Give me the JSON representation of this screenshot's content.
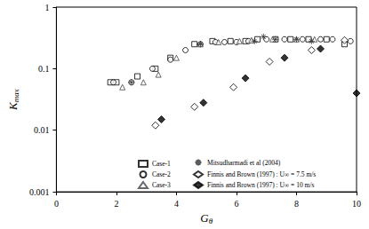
{
  "chart_data": {
    "type": "scatter",
    "x_label": "Gθ",
    "y_label": "Kmax",
    "xlim": [
      0,
      10
    ],
    "xticks": [
      0,
      2,
      4,
      6,
      8,
      10
    ],
    "ylim": [
      0.001,
      1
    ],
    "yticks": [
      0.001,
      0.01,
      0.1,
      1
    ],
    "log": "y",
    "grid": false,
    "legend": "lower center",
    "series": [
      {
        "name": "Case-1",
        "color": "#000000",
        "marker": "square-open",
        "x": [
          1.8,
          2.0,
          2.7,
          3.3,
          3.8,
          4.6,
          5.2,
          5.8,
          6.3,
          6.7,
          7.3,
          7.8,
          8.4,
          9.0,
          9.6
        ],
        "values": [
          0.06,
          0.06,
          0.075,
          0.1,
          0.15,
          0.25,
          0.28,
          0.28,
          0.28,
          0.3,
          0.3,
          0.3,
          0.3,
          0.3,
          0.25
        ]
      },
      {
        "name": "Case-2",
        "color": "#000000",
        "marker": "circle-open",
        "x": [
          1.9,
          2.5,
          3.2,
          3.8,
          4.3,
          4.8,
          5.3,
          5.6,
          6.0,
          6.4,
          7.0,
          7.6,
          8.2,
          8.8,
          9.2,
          9.8
        ],
        "values": [
          0.06,
          0.06,
          0.1,
          0.14,
          0.2,
          0.25,
          0.27,
          0.27,
          0.27,
          0.28,
          0.3,
          0.3,
          0.3,
          0.3,
          0.3,
          0.28
        ]
      },
      {
        "name": "Case-3",
        "color": "#444444",
        "marker": "triangle-open",
        "x": [
          2.2,
          2.9,
          3.4,
          4.0,
          4.8,
          5.4,
          6.1,
          6.5,
          7.2,
          8.0,
          8.6
        ],
        "values": [
          0.05,
          0.06,
          0.08,
          0.15,
          0.25,
          0.27,
          0.28,
          0.29,
          0.3,
          0.3,
          0.3
        ]
      },
      {
        "name": "Mitsudharmadi et al (2004)",
        "color": "#333333",
        "marker": "asterisk",
        "x": [
          2.5,
          4.8,
          6.6,
          6.9,
          7.3,
          8.0,
          8.5
        ],
        "values": [
          0.06,
          0.25,
          0.28,
          0.33,
          0.3,
          0.3,
          0.28
        ]
      },
      {
        "name": "Finnis and Brown (1997) : U∞ = 7.5 m/s",
        "color": "#000000",
        "marker": "diamond-open",
        "x": [
          3.3,
          4.6,
          5.9,
          7.1,
          8.5,
          9.6
        ],
        "values": [
          0.012,
          0.024,
          0.05,
          0.13,
          0.2,
          0.29
        ]
      },
      {
        "name": "Finnis and Brown (1997) : U∞ = 10 m/s",
        "color": "#000000",
        "marker": "diamond",
        "x": [
          3.5,
          4.9,
          6.3,
          7.6,
          8.8,
          10.0
        ],
        "values": [
          0.015,
          0.028,
          0.07,
          0.15,
          0.21,
          0.04
        ]
      }
    ]
  }
}
